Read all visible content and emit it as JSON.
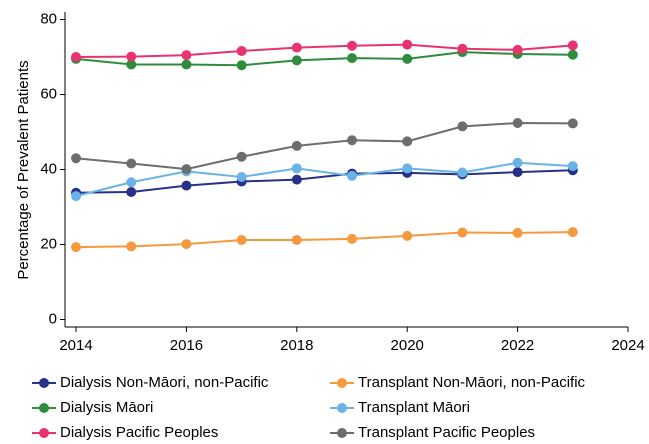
{
  "chart_data": {
    "type": "line",
    "y_label": "Percentage of Prevalent Patients",
    "x": [
      2014,
      2015,
      2016,
      2017,
      2018,
      2019,
      2020,
      2021,
      2022,
      2023
    ],
    "xlim": [
      2013.8,
      2024
    ],
    "xticks": [
      2014,
      2016,
      2018,
      2020,
      2022,
      2024
    ],
    "ylim": [
      -2,
      82
    ],
    "yticks": [
      0,
      20,
      40,
      60,
      80
    ],
    "grid": false,
    "legend": "bottom",
    "series": [
      {
        "name": "Dialysis Non-Māori, non-Pacific",
        "color": "#27318a",
        "values": [
          33.8,
          34.0,
          35.7,
          36.8,
          37.3,
          38.9,
          39.1,
          38.7,
          39.3,
          39.8
        ]
      },
      {
        "name": "Transplant Non-Māori, non-Pacific",
        "color": "#f5993e",
        "values": [
          19.3,
          19.5,
          20.1,
          21.2,
          21.2,
          21.5,
          22.3,
          23.2,
          23.1,
          23.3
        ]
      },
      {
        "name": "Dialysis Māori",
        "color": "#2e8c3c",
        "values": [
          69.5,
          68.0,
          68.0,
          67.8,
          69.1,
          69.7,
          69.5,
          71.3,
          70.8,
          70.6
        ]
      },
      {
        "name": "Transplant Māori",
        "color": "#6ab3e6",
        "values": [
          32.9,
          36.6,
          39.5,
          38.0,
          40.3,
          38.3,
          40.3,
          39.2,
          41.8,
          40.9
        ]
      },
      {
        "name": "Dialysis Pacific Peoples",
        "color": "#e8336f",
        "values": [
          70.0,
          70.1,
          70.5,
          71.6,
          72.5,
          73.0,
          73.3,
          72.2,
          71.9,
          73.1
        ]
      },
      {
        "name": "Transplant Pacific Peoples",
        "color": "#6d6d6d",
        "values": [
          43.0,
          41.6,
          40.1,
          43.4,
          46.3,
          47.8,
          47.5,
          51.5,
          52.4,
          52.3
        ]
      }
    ]
  }
}
